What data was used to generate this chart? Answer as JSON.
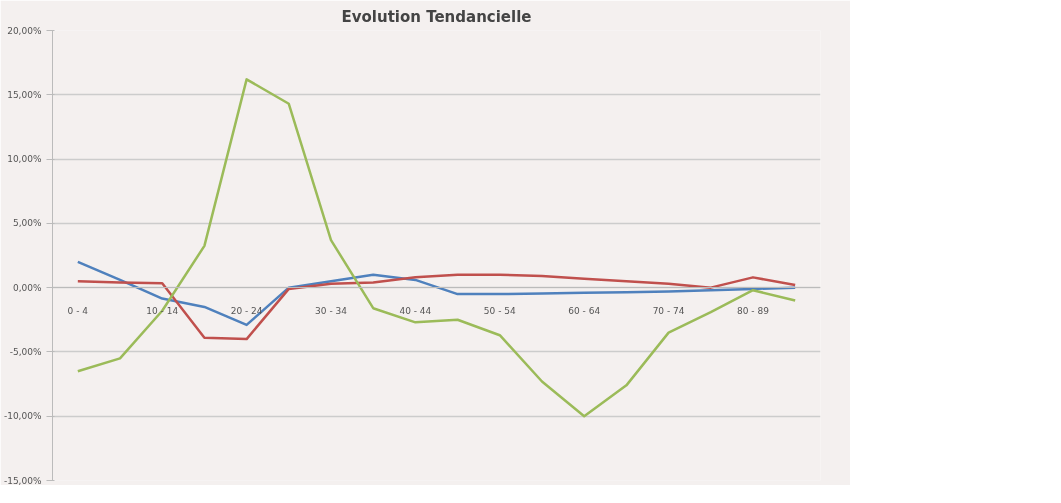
{
  "chart_data": {
    "type": "line",
    "title": "Evolution Tendancielle",
    "categories": [
      "0 - 4",
      null,
      "10 - 14",
      null,
      "20 - 24",
      null,
      "30 - 34",
      null,
      "40 - 44",
      null,
      "50 - 54",
      null,
      "60 - 64",
      null,
      "70 - 74",
      null,
      "80 - 89",
      null
    ],
    "series": [
      {
        "color": "#4f81bd",
        "values": [
          2.0,
          0.6,
          -0.85,
          -1.5,
          -2.9,
          0.0,
          0.5,
          1.0,
          0.6,
          -0.5,
          -0.5,
          -0.45,
          -0.4,
          -0.35,
          -0.3,
          -0.2,
          -0.1,
          0.0
        ]
      },
      {
        "color": "#c0504d",
        "values": [
          0.5,
          0.4,
          0.35,
          -3.9,
          -4.0,
          -0.1,
          0.3,
          0.4,
          0.8,
          1.0,
          1.0,
          0.9,
          0.7,
          0.5,
          0.3,
          0.0,
          0.8,
          0.2
        ]
      },
      {
        "color": "#9bbb59",
        "values": [
          -6.5,
          -5.5,
          -1.8,
          3.25,
          16.2,
          14.3,
          3.7,
          -1.6,
          -2.7,
          -2.5,
          -3.7,
          -7.3,
          -10.0,
          -7.6,
          -3.5,
          -1.9,
          -0.2,
          -1.0
        ]
      }
    ],
    "ylim": [
      -15,
      20
    ],
    "yticks": [
      {
        "value": -15,
        "label": "-15,00%"
      },
      {
        "value": -10,
        "label": "-10,00%"
      },
      {
        "value": -5,
        "label": "-5,00%"
      },
      {
        "value": 0,
        "label": "0,00%"
      },
      {
        "value": 5,
        "label": "5,00%"
      },
      {
        "value": 10,
        "label": "10,00%"
      },
      {
        "value": 15,
        "label": "15,00%"
      },
      {
        "value": 20,
        "label": "20,00%"
      }
    ],
    "grid": "y",
    "marker": "none",
    "line_style": "solid"
  }
}
